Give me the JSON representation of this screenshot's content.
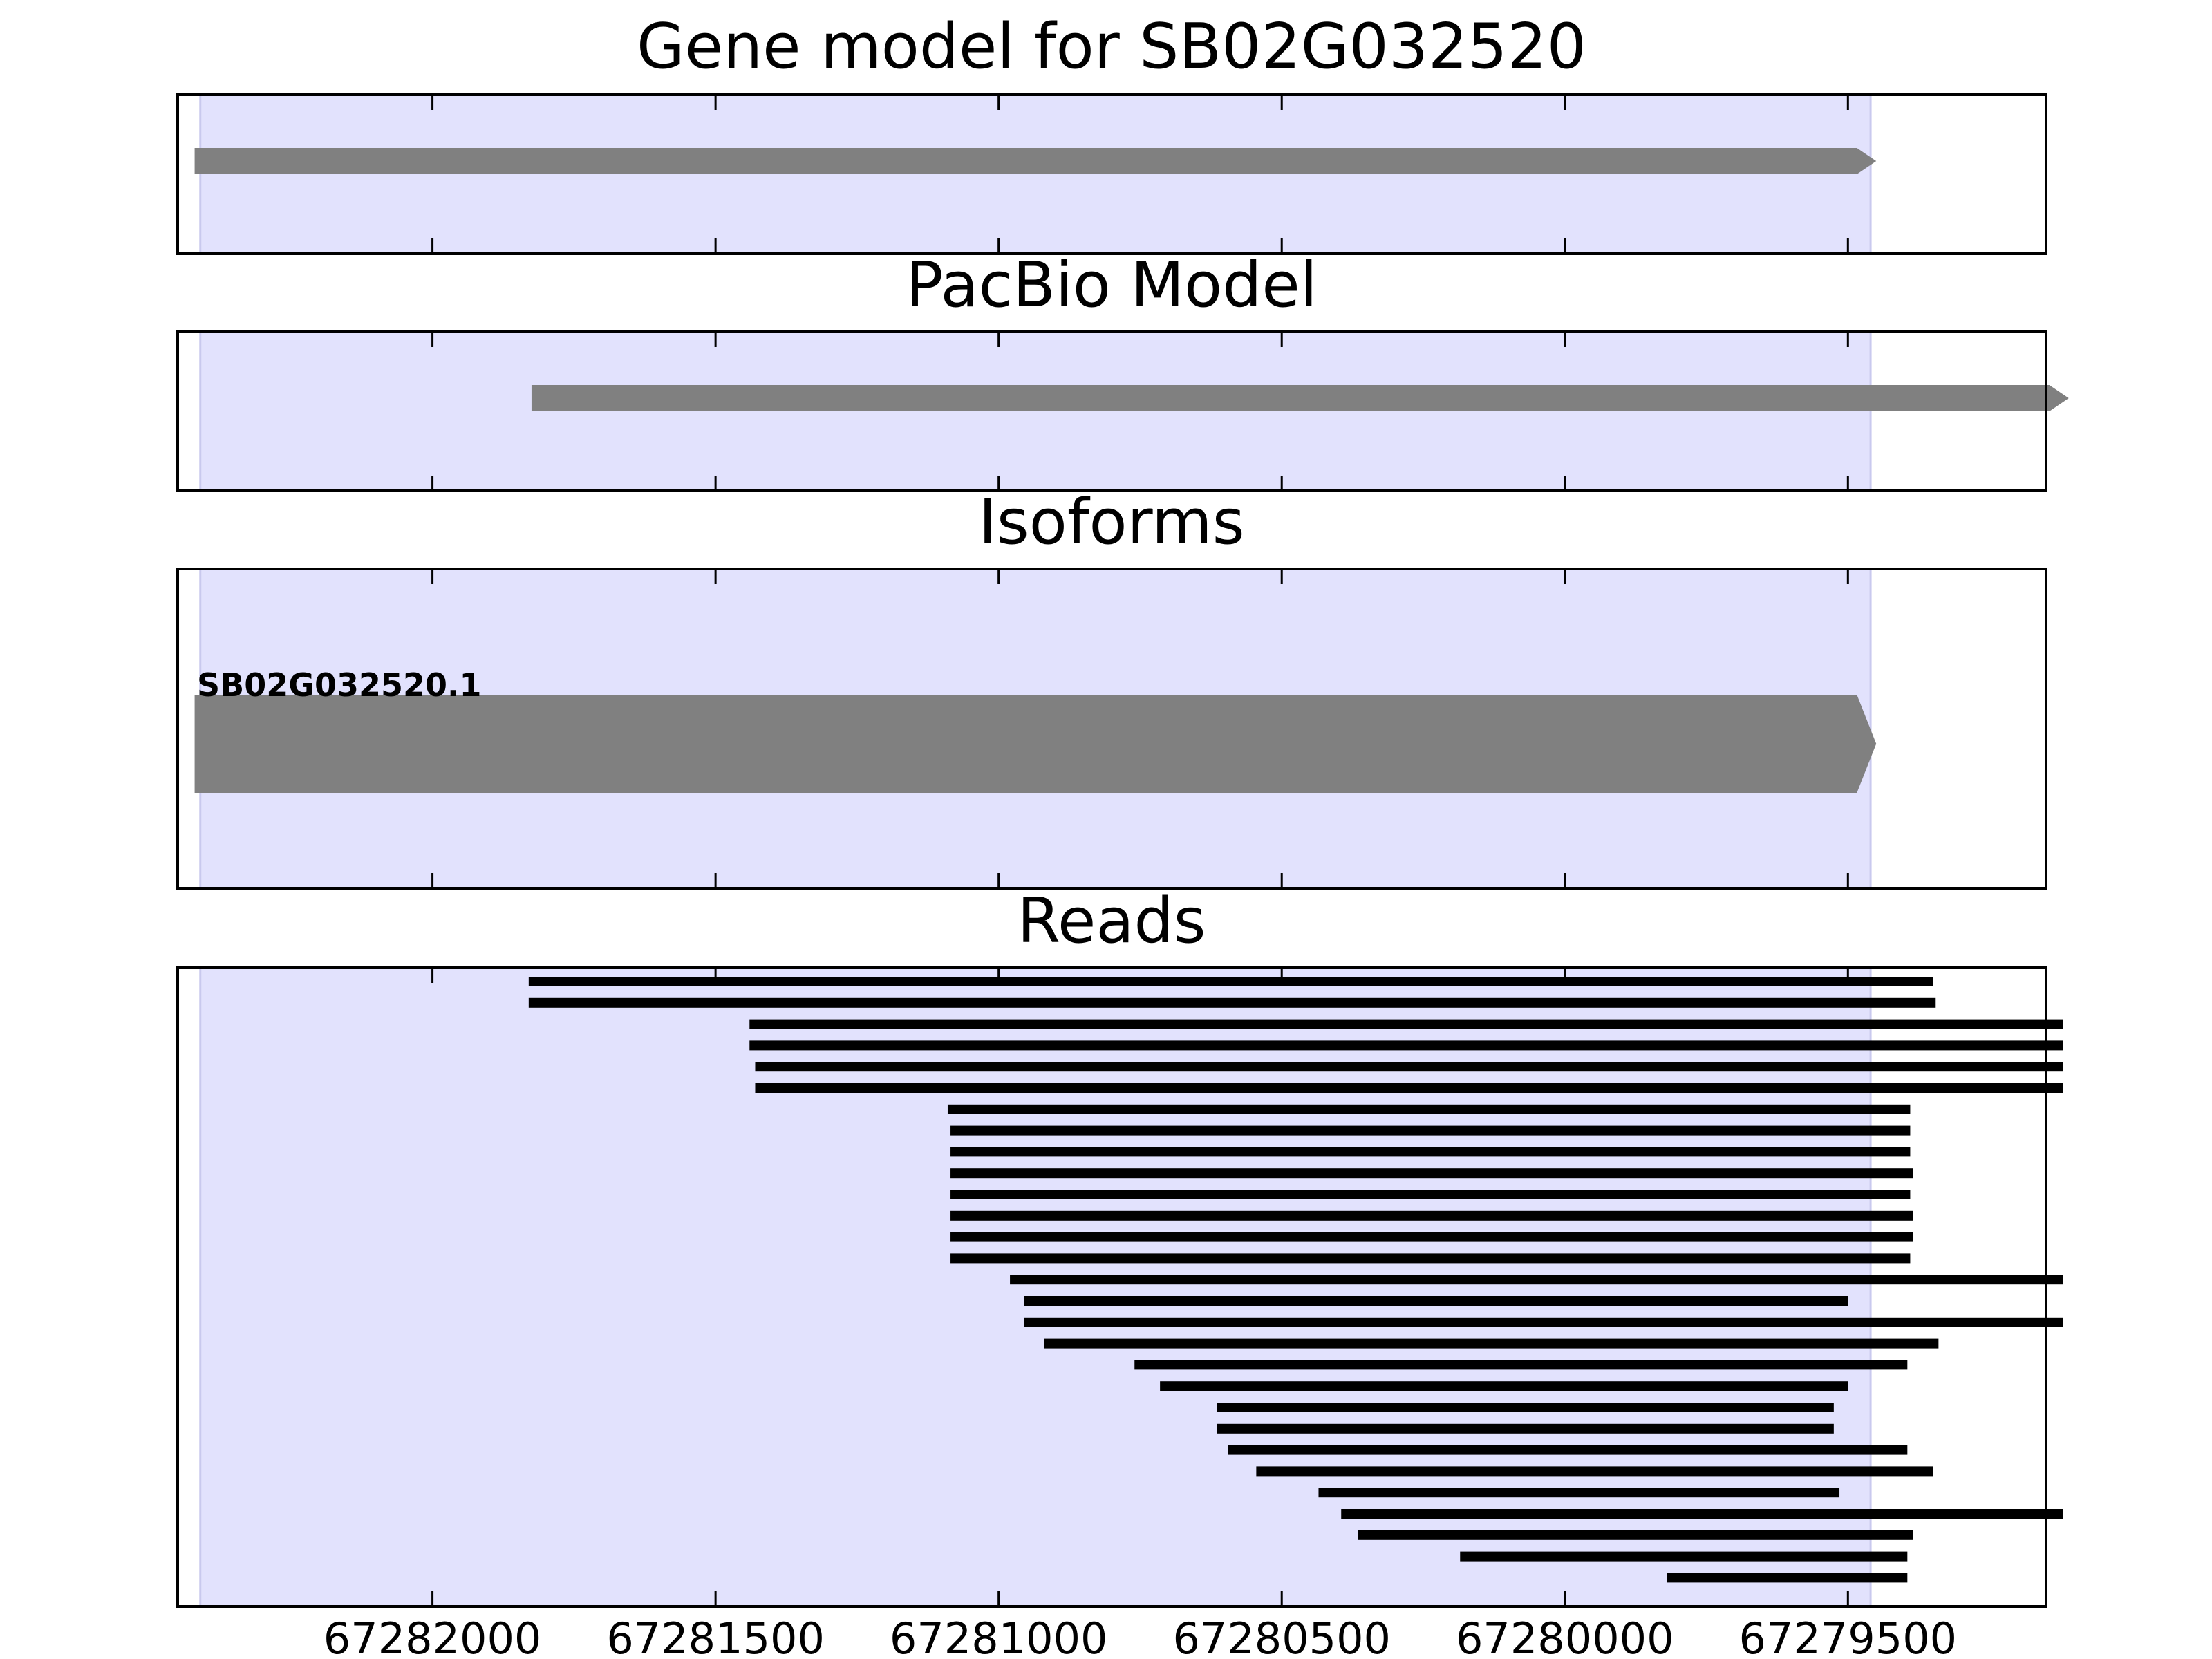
{
  "chart_data": {
    "type": "gene_track",
    "xaxis": {
      "reversed": true,
      "ticks": [
        "67282000",
        "67281500",
        "67281000",
        "67280500",
        "67280000",
        "67279500"
      ],
      "xlim": [
        67282450,
        67279150
      ]
    },
    "highlight_region": {
      "start": 67282410,
      "end": 67279460,
      "color": "#e2e2fd"
    },
    "panels": [
      {
        "id": "gene-model",
        "title": "Gene model for SB02G032520",
        "features": [
          {
            "start": 67282420,
            "end": 67279450,
            "strand": "+",
            "color": "#808080"
          }
        ]
      },
      {
        "id": "pacbio-model",
        "title": "PacBio Model",
        "features": [
          {
            "start": 67281825,
            "end": 67279110,
            "strand": "+",
            "color": "#808080"
          }
        ]
      },
      {
        "id": "isoforms",
        "title": "Isoforms",
        "features": [
          {
            "label": "SB02G032520.1",
            "start": 67282420,
            "end": 67279450,
            "strand": "+",
            "color": "#808080"
          }
        ]
      },
      {
        "id": "reads",
        "title": "Reads",
        "reads": [
          [
            67281830,
            67279350
          ],
          [
            67281830,
            67279345
          ],
          [
            67281440,
            67279120
          ],
          [
            67281440,
            67279120
          ],
          [
            67281430,
            67279120
          ],
          [
            67281430,
            67279120
          ],
          [
            67281090,
            67279390
          ],
          [
            67281085,
            67279390
          ],
          [
            67281085,
            67279390
          ],
          [
            67281085,
            67279385
          ],
          [
            67281085,
            67279390
          ],
          [
            67281085,
            67279385
          ],
          [
            67281085,
            67279385
          ],
          [
            67281085,
            67279390
          ],
          [
            67280980,
            67279120
          ],
          [
            67280955,
            67279500
          ],
          [
            67280955,
            67279120
          ],
          [
            67280920,
            67279340
          ],
          [
            67280760,
            67279395
          ],
          [
            67280715,
            67279500
          ],
          [
            67280615,
            67279525
          ],
          [
            67280615,
            67279525
          ],
          [
            67280595,
            67279395
          ],
          [
            67280545,
            67279350
          ],
          [
            67280435,
            67279515
          ],
          [
            67280395,
            67279120
          ],
          [
            67280365,
            67279385
          ],
          [
            67280185,
            67279395
          ],
          [
            67279820,
            67279395
          ]
        ]
      }
    ]
  }
}
